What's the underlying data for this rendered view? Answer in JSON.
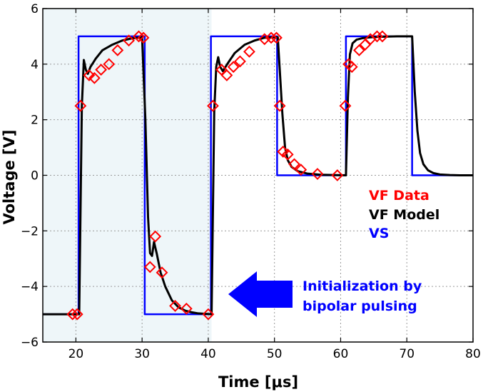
{
  "chart_data": {
    "type": "line",
    "title": "",
    "xlabel": "Time [μs]",
    "ylabel": "Voltage [V]",
    "xlim": [
      15,
      80
    ],
    "ylim": [
      -6,
      6
    ],
    "xticks": [
      20,
      30,
      40,
      50,
      60,
      70,
      80
    ],
    "yticks": [
      -6,
      -4,
      -2,
      0,
      2,
      4,
      6
    ],
    "grid": true,
    "shaded_region": {
      "x_start": 15,
      "x_end": 40.5
    },
    "legend": {
      "placement": "right",
      "entries": [
        {
          "label": "VF Data",
          "color": "#ff0000"
        },
        {
          "label": "VF Model",
          "color": "#000000"
        },
        {
          "label": "VS",
          "color": "#0000ff"
        }
      ]
    },
    "annotation": {
      "line1": "Initialization by",
      "line2": "bipolar pulsing",
      "color": "#0000ff",
      "arrow_color": "#0000ff"
    },
    "series": [
      {
        "name": "VS",
        "color": "#0000ff",
        "x": [
          15,
          20.4,
          20.4,
          30.4,
          30.4,
          40.4,
          40.4,
          50.4,
          50.4,
          60.8,
          60.8,
          70.8,
          70.8,
          80
        ],
        "y": [
          -5,
          -5,
          5,
          5,
          -5,
          -5,
          5,
          5,
          0,
          0,
          5,
          5,
          0,
          0
        ]
      },
      {
        "name": "VF Model",
        "color": "#000000",
        "x": [
          15,
          20.5,
          20.9,
          21.2,
          21.5,
          21.8,
          22.2,
          23.0,
          24.0,
          25.5,
          27.0,
          28.5,
          30.0,
          30.5,
          30.9,
          31.2,
          31.5,
          31.8,
          32.2,
          32.8,
          33.5,
          34.5,
          35.5,
          36.5,
          37.5,
          38.5,
          40.5,
          40.9,
          41.2,
          41.5,
          41.8,
          42.2,
          43.0,
          44.0,
          45.5,
          47.0,
          48.5,
          50.5,
          50.8,
          51.2,
          51.6,
          52.0,
          52.6,
          53.5,
          55.0,
          57.0,
          60.8,
          61.1,
          61.4,
          61.8,
          62.4,
          63.2,
          64.2,
          65.5,
          67.0,
          68.5,
          70.8,
          71.2,
          71.6,
          72.0,
          72.5,
          73.2,
          74.0,
          75.0,
          76.5,
          78.0,
          80
        ],
        "y": [
          -5,
          -5,
          2.5,
          4.15,
          3.8,
          3.65,
          3.9,
          4.2,
          4.5,
          4.7,
          4.85,
          4.93,
          4.97,
          2.0,
          -1.5,
          -2.8,
          -2.9,
          -2.4,
          -2.8,
          -3.5,
          -4.0,
          -4.5,
          -4.75,
          -4.87,
          -4.93,
          -4.97,
          -5.0,
          2.3,
          3.9,
          4.25,
          3.9,
          3.75,
          4.05,
          4.4,
          4.7,
          4.85,
          4.95,
          4.97,
          3.8,
          2.2,
          1.0,
          0.55,
          0.3,
          0.15,
          0.06,
          0.02,
          0.0,
          2.8,
          4.35,
          4.75,
          4.88,
          4.93,
          4.96,
          4.98,
          4.99,
          5.0,
          5.0,
          3.0,
          1.6,
          0.8,
          0.4,
          0.18,
          0.08,
          0.03,
          0.01,
          0.0,
          0.0
        ]
      },
      {
        "name": "VF Data",
        "color": "#ff0000",
        "marker": "diamond",
        "x": [
          19.5,
          20.2,
          20.7,
          22.0,
          22.8,
          23.8,
          25.0,
          26.3,
          28.0,
          29.5,
          30.2,
          31.2,
          32.0,
          33.0,
          35.0,
          36.7,
          40.0,
          40.7,
          42.0,
          42.8,
          43.8,
          44.8,
          46.2,
          48.5,
          49.5,
          50.3,
          50.8,
          51.3,
          52.0,
          53.0,
          54.0,
          56.5,
          59.5,
          60.7,
          61.2,
          61.7,
          62.8,
          63.7,
          64.5,
          65.5,
          66.3
        ],
        "y": [
          -5.0,
          -5.0,
          2.5,
          3.6,
          3.5,
          3.8,
          4.0,
          4.5,
          4.85,
          5.0,
          4.95,
          -3.3,
          -2.2,
          -3.5,
          -4.7,
          -4.8,
          -5.0,
          2.5,
          3.8,
          3.6,
          3.9,
          4.1,
          4.45,
          4.9,
          4.95,
          4.95,
          2.5,
          0.85,
          0.75,
          0.4,
          0.2,
          0.05,
          0.0,
          2.5,
          4.0,
          3.9,
          4.5,
          4.7,
          4.9,
          5.0,
          5.0
        ]
      }
    ]
  }
}
